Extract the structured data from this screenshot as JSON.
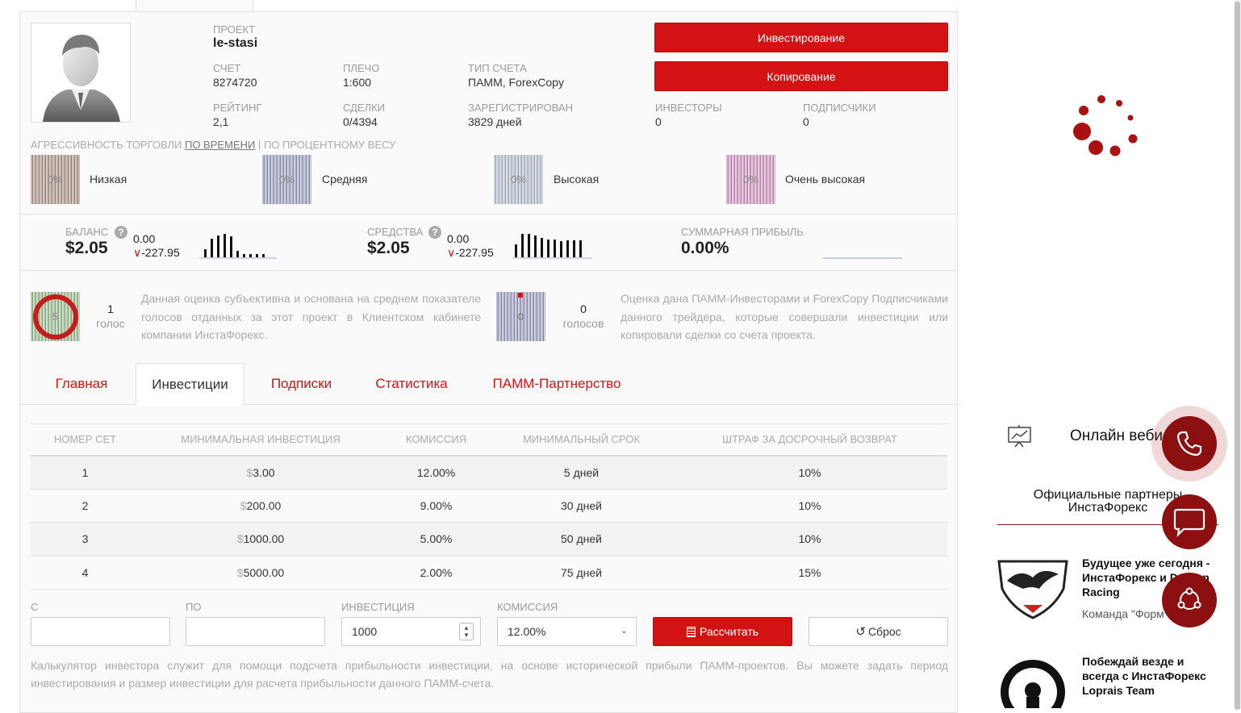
{
  "project": {
    "project_label": "ПРОЕКТ",
    "project_name": "le-stasi",
    "account_label": "СЧЕТ",
    "account_value": "8274720",
    "leverage_label": "ПЛЕЧО",
    "leverage_value": "1:600",
    "type_label": "ТИП СЧЕТА",
    "type_value": "ПАММ, ForexCopy",
    "rating_label": "РЕЙТИНГ",
    "rating_value": "2,1",
    "trades_label": "СДЕЛКИ",
    "trades_value": "0/4394",
    "registered_label": "ЗАРЕГИСТРИРОВАН",
    "registered_value": "3829 дней",
    "investors_label": "ИНВЕСТОРЫ",
    "investors_value": "0",
    "subscribers_label": "ПОДПИСЧИКИ",
    "subscribers_value": "0",
    "invest_button": "Инвестирование",
    "copy_button": "Копирование"
  },
  "aggressiveness": {
    "title": "АГРЕССИВНОСТЬ ТОРГОВЛИ",
    "by_time": "ПО ВРЕМЕНИ",
    "separator": "|",
    "by_weight": "ПО ПРОЦЕНТНОМУ ВЕСУ",
    "levels": [
      {
        "percent": "0%",
        "label": "Низкая"
      },
      {
        "percent": "0%",
        "label": "Средняя"
      },
      {
        "percent": "0%",
        "label": "Высокая"
      },
      {
        "percent": "0%",
        "label": "Очень высокая"
      }
    ]
  },
  "finance": {
    "balance_label": "БАЛАНС",
    "balance_value": "$2.05",
    "balance_up": "0.00",
    "balance_down": "-227.95",
    "funds_label": "СРЕДСТВА",
    "funds_value": "$2.05",
    "funds_up": "0.00",
    "funds_down": "-227.95",
    "profit_label": "СУММАРНАЯ ПРИБЫЛЬ",
    "profit_value": "0.00%",
    "help_icon": "?"
  },
  "votes": {
    "client_score": "5",
    "client_count": "1",
    "client_unit": "голос",
    "client_desc": "Данная оценка субъективна и основана на среднем показателе голосов отданных за этот проект в Клиентском кабинете компании ИнстаФорекс.",
    "investor_score": "0",
    "investor_count": "0",
    "investor_unit": "голосов",
    "investor_desc": "Оценка дана ПАММ-Инвесторами и ForexCopy Подписчиками данного трейдера, которые совершали инвестиции или копировали сделки со счета проекта."
  },
  "tabs": [
    "Главная",
    "Инвестиции",
    "Подписки",
    "Статистика",
    "ПАММ-Партнерство"
  ],
  "table": {
    "headers": [
      "НОМЕР СЕТ",
      "МИНИМАЛЬНАЯ ИНВЕСТИЦИЯ",
      "КОМИССИЯ",
      "МИНИМАЛЬНЫЙ СРОК",
      "ШТРАФ ЗА ДОСРОЧНЫЙ ВОЗВРАТ"
    ],
    "rows": [
      {
        "num": "1",
        "min": "3.00",
        "fee": "12.00%",
        "term": "5 дней",
        "penalty": "10%"
      },
      {
        "num": "2",
        "min": "200.00",
        "fee": "9.00%",
        "term": "30 дней",
        "penalty": "10%"
      },
      {
        "num": "3",
        "min": "1000.00",
        "fee": "5.00%",
        "term": "50 дней",
        "penalty": "10%"
      },
      {
        "num": "4",
        "min": "5000.00",
        "fee": "2.00%",
        "term": "75 дней",
        "penalty": "15%"
      }
    ],
    "currency": "$"
  },
  "calculator": {
    "from_label": "С",
    "to_label": "ПО",
    "investment_label": "ИНВЕСТИЦИЯ",
    "investment_value": "1000",
    "commission_label": "КОМИССИЯ",
    "commission_value": "12.00%",
    "calc_button": "Рассчитать",
    "reset_button": "Сброс",
    "description": "Калькулятор инвестора служит для помощи подсчета прибыльности инвестиции, на основе исторической прибыли ПАММ-проектов. Вы можете задать период инвестирования и размер инвестиции для расчета прибыльности данного ПАММ-счета."
  },
  "sidebar": {
    "webinar_title": "Онлайн веби",
    "partners_title": "Официальные партнеры ИнстаФорекс",
    "news": [
      {
        "title": "Будущее уже сегодня - ИнстаФорекс и Dragon Racing",
        "subtitle": "Команда \"Форм"
      },
      {
        "title": "Побеждай везде и всегда с ИнстаФорекс Loprais Team",
        "subtitle": ""
      }
    ]
  },
  "colors": {
    "accent": "#d31313",
    "dark_red": "#8c1010"
  }
}
